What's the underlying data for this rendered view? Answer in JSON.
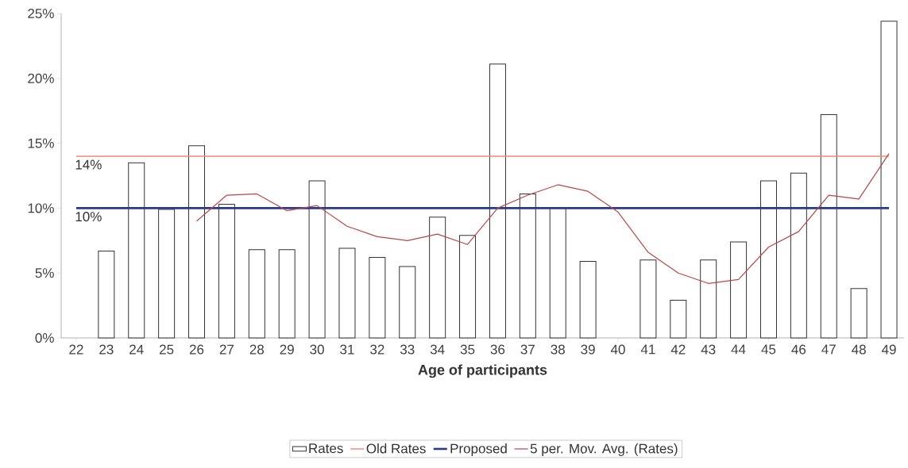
{
  "chart_data": {
    "type": "bar",
    "xlabel": "Age of participants",
    "categories": [
      "22",
      "23",
      "24",
      "25",
      "26",
      "27",
      "28",
      "29",
      "30",
      "31",
      "32",
      "33",
      "34",
      "35",
      "36",
      "37",
      "38",
      "39",
      "40",
      "41",
      "42",
      "43",
      "44",
      "45",
      "46",
      "47",
      "48",
      "49"
    ],
    "series": [
      {
        "name": "Rates",
        "color": "#ffffff",
        "values": [
          0,
          6.7,
          13.5,
          9.9,
          14.8,
          10.3,
          6.8,
          6.8,
          12.1,
          6.9,
          6.2,
          5.5,
          9.3,
          7.9,
          21.1,
          11.1,
          10.0,
          5.9,
          0,
          6.0,
          2.9,
          6.0,
          7.4,
          12.1,
          12.7,
          17.2,
          3.8,
          24.4
        ]
      },
      {
        "name": "Old Rates",
        "type": "line",
        "color": "#f08878",
        "values": [
          14,
          14,
          14,
          14,
          14,
          14,
          14,
          14,
          14,
          14,
          14,
          14,
          14,
          14,
          14,
          14,
          14,
          14,
          14,
          14,
          14,
          14,
          14,
          14,
          14,
          14,
          14,
          14
        ]
      },
      {
        "name": "Proposed",
        "type": "line",
        "color": "#2a3a8a",
        "values": [
          10,
          10,
          10,
          10,
          10,
          10,
          10,
          10,
          10,
          10,
          10,
          10,
          10,
          10,
          10,
          10,
          10,
          10,
          10,
          10,
          10,
          10,
          10,
          10,
          10,
          10,
          10,
          10
        ]
      },
      {
        "name": "5 per. Mov. Avg. (Rates)",
        "type": "line",
        "color": "#b84848",
        "values": [
          null,
          null,
          null,
          null,
          9.0,
          11.0,
          11.1,
          9.8,
          10.2,
          8.6,
          7.8,
          7.5,
          8.0,
          7.2,
          10.0,
          11.0,
          11.8,
          11.3,
          9.7,
          6.6,
          5.0,
          4.2,
          4.5,
          7.0,
          8.2,
          11.0,
          10.7,
          14.2
        ]
      }
    ],
    "ylim": [
      0,
      25
    ],
    "yticks": [
      {
        "value": 0,
        "label": "0%"
      },
      {
        "value": 5,
        "label": "5%"
      },
      {
        "value": 10,
        "label": "10%"
      },
      {
        "value": 15,
        "label": "15%"
      },
      {
        "value": 20,
        "label": "20%"
      },
      {
        "value": 25,
        "label": "25%"
      }
    ],
    "annotations": [
      {
        "text": "14%",
        "x": "22",
        "y": 14
      },
      {
        "text": "10%",
        "x": "22",
        "y": 10
      }
    ],
    "legend": "bottom"
  }
}
